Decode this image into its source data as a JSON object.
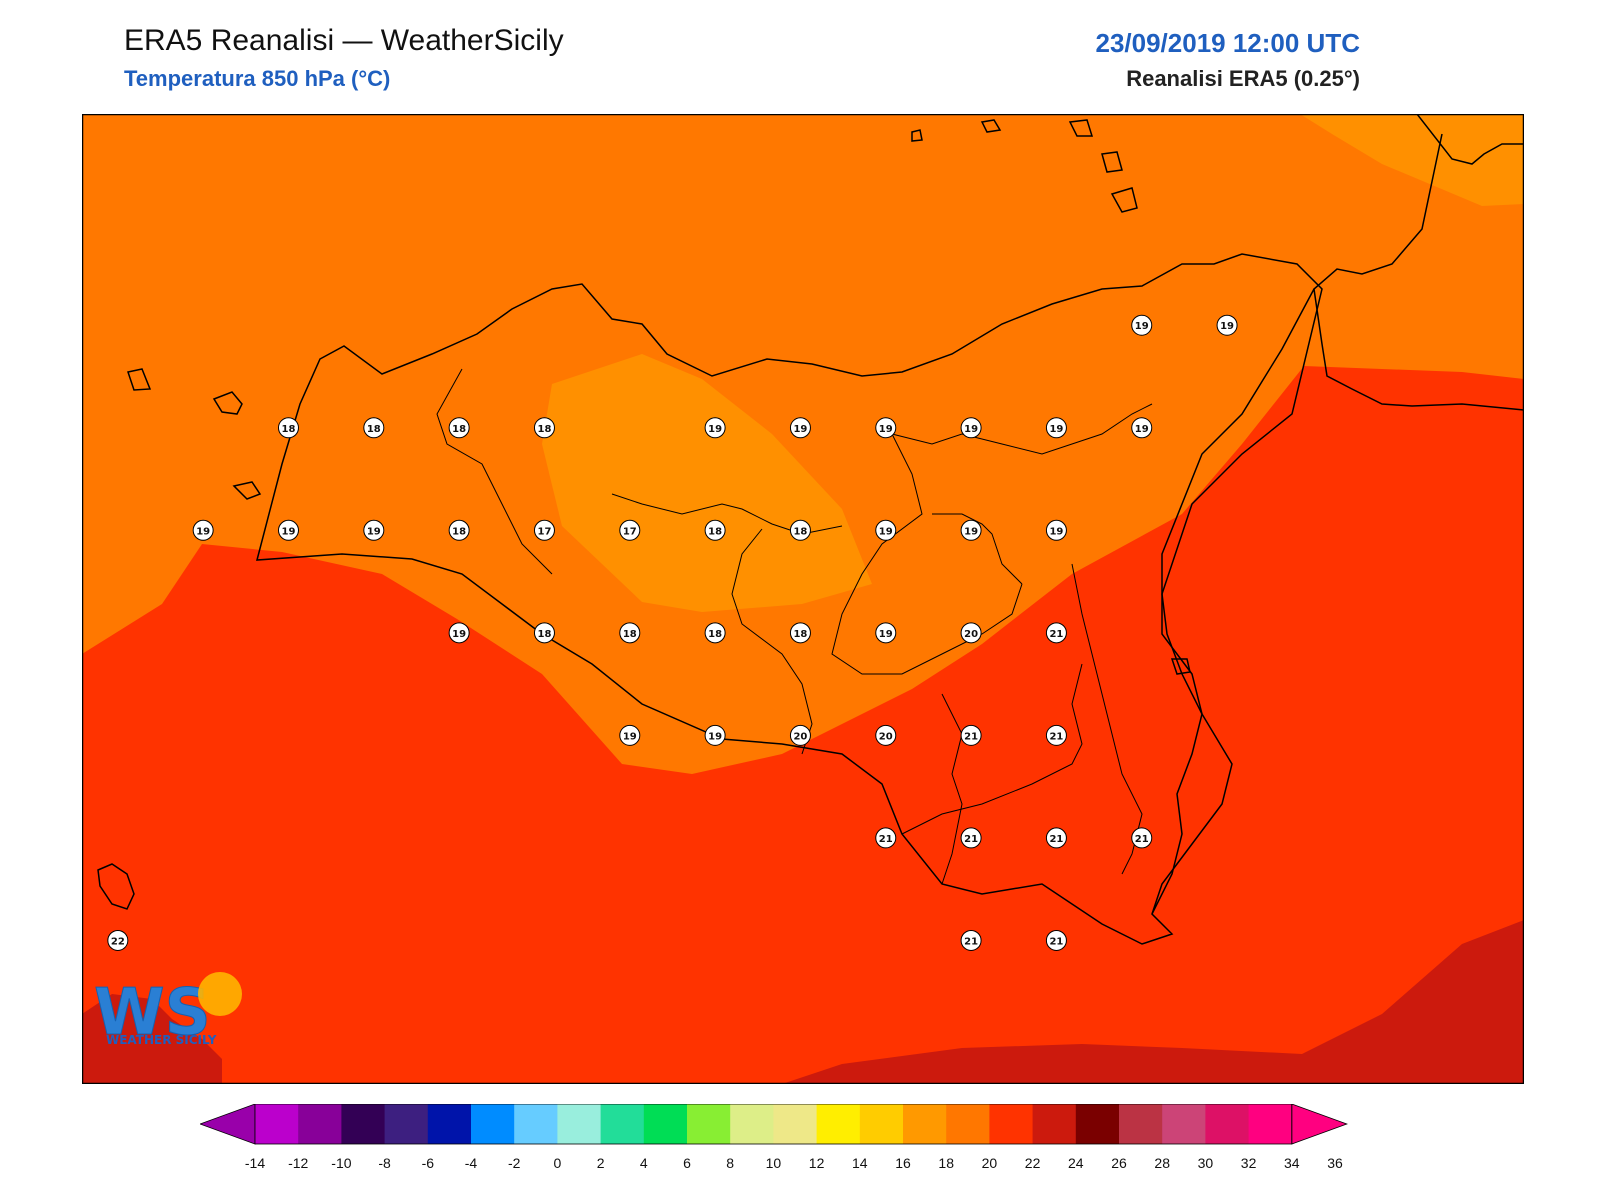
{
  "header": {
    "title": "ERA5 Reanalisi — WeatherSicily",
    "subtitle": "Temperatura 850 hPa (°C)",
    "datetime": "23/09/2019 12:00 UTC",
    "source": "Reanalisi ERA5 (0.25°)"
  },
  "logo": {
    "letters": "WS",
    "text": "WEATHER SICILY"
  },
  "field_colors": {
    "c16_18": "#ff9000",
    "c18_20": "#ff7800",
    "c20_22": "#ff3300",
    "c22_24": "#cc1a0d"
  },
  "stations": [
    {
      "v": "18",
      "lon": 13.0,
      "lat": 38.25
    },
    {
      "v": "18",
      "lon": 13.5,
      "lat": 38.25
    },
    {
      "v": "18",
      "lon": 14.0,
      "lat": 38.25
    },
    {
      "v": "18",
      "lon": 14.5,
      "lat": 38.25
    },
    {
      "v": "19",
      "lon": 15.5,
      "lat": 38.25
    },
    {
      "v": "19",
      "lon": 16.0,
      "lat": 38.25
    },
    {
      "v": "19",
      "lon": 16.5,
      "lat": 38.25
    },
    {
      "v": "19",
      "lon": 17.0,
      "lat": 38.25
    },
    {
      "v": "19",
      "lon": 17.5,
      "lat": 38.25
    },
    {
      "v": "19",
      "lon": 18.0,
      "lat": 38.25
    },
    {
      "v": "19",
      "lon": 18.0,
      "lat": 38.75
    },
    {
      "v": "19",
      "lon": 18.5,
      "lat": 38.75
    },
    {
      "v": "19",
      "lon": 12.5,
      "lat": 37.75
    },
    {
      "v": "19",
      "lon": 13.0,
      "lat": 37.75
    },
    {
      "v": "19",
      "lon": 13.5,
      "lat": 37.75
    },
    {
      "v": "18",
      "lon": 14.0,
      "lat": 37.75
    },
    {
      "v": "17",
      "lon": 14.5,
      "lat": 37.75
    },
    {
      "v": "17",
      "lon": 15.0,
      "lat": 37.75
    },
    {
      "v": "18",
      "lon": 15.5,
      "lat": 37.75
    },
    {
      "v": "18",
      "lon": 16.0,
      "lat": 37.75
    },
    {
      "v": "19",
      "lon": 16.5,
      "lat": 37.75
    },
    {
      "v": "19",
      "lon": 17.0,
      "lat": 37.75
    },
    {
      "v": "19",
      "lon": 17.5,
      "lat": 37.75
    },
    {
      "v": "19",
      "lon": 14.0,
      "lat": 37.25
    },
    {
      "v": "18",
      "lon": 14.5,
      "lat": 37.25
    },
    {
      "v": "18",
      "lon": 15.0,
      "lat": 37.25
    },
    {
      "v": "18",
      "lon": 15.5,
      "lat": 37.25
    },
    {
      "v": "18",
      "lon": 16.0,
      "lat": 37.25
    },
    {
      "v": "19",
      "lon": 16.5,
      "lat": 37.25
    },
    {
      "v": "20",
      "lon": 17.0,
      "lat": 37.25
    },
    {
      "v": "21",
      "lon": 17.5,
      "lat": 37.25
    },
    {
      "v": "19",
      "lon": 15.0,
      "lat": 36.75
    },
    {
      "v": "19",
      "lon": 15.5,
      "lat": 36.75
    },
    {
      "v": "20",
      "lon": 16.0,
      "lat": 36.75
    },
    {
      "v": "20",
      "lon": 16.5,
      "lat": 36.75
    },
    {
      "v": "21",
      "lon": 17.0,
      "lat": 36.75
    },
    {
      "v": "21",
      "lon": 17.5,
      "lat": 36.75
    },
    {
      "v": "21",
      "lon": 16.5,
      "lat": 36.25
    },
    {
      "v": "21",
      "lon": 17.0,
      "lat": 36.25
    },
    {
      "v": "21",
      "lon": 17.5,
      "lat": 36.25
    },
    {
      "v": "21",
      "lon": 18.0,
      "lat": 36.25
    },
    {
      "v": "22",
      "lon": 12.0,
      "lat": 35.75
    },
    {
      "v": "21",
      "lon": 17.0,
      "lat": 35.75
    },
    {
      "v": "21",
      "lon": 17.5,
      "lat": 35.75
    }
  ],
  "colorbar": {
    "ticks": [
      "-14",
      "-12",
      "-10",
      "-8",
      "-6",
      "-4",
      "-2",
      "0",
      "2",
      "4",
      "6",
      "8",
      "10",
      "12",
      "14",
      "16",
      "18",
      "20",
      "22",
      "24",
      "26",
      "28",
      "30",
      "32",
      "34",
      "36"
    ],
    "under_color": "#9900aa",
    "over_color": "#ff0080",
    "colors": [
      "#bb00cc",
      "#880099",
      "#330055",
      "#3d1f80",
      "#0014aa",
      "#008cff",
      "#66ccff",
      "#99eedd",
      "#22dd99",
      "#00dd55",
      "#88ee33",
      "#ddee88",
      "#eee888",
      "#ffee00",
      "#ffcc00",
      "#ff9900",
      "#ff7700",
      "#ff3300",
      "#cc1a0d",
      "#7a0000",
      "#bb3344",
      "#cc4477",
      "#dd1166",
      "#ff0080"
    ]
  }
}
